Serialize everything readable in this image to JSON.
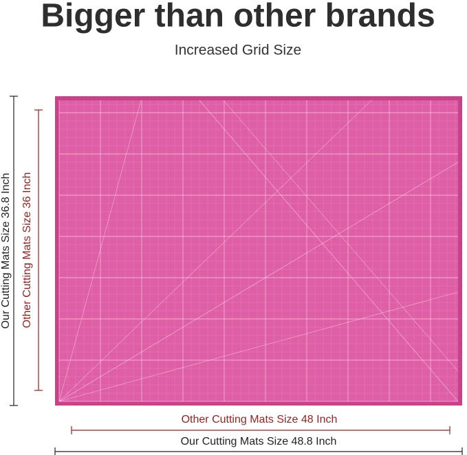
{
  "header": {
    "title": "Bigger than other brands",
    "subtitle": "Increased Grid Size"
  },
  "dimensions": {
    "our_height": "Our Cutting Mats Size 36.8 Inch",
    "other_height": "Other Cutting Mats Size 36 Inch",
    "other_width": "Other Cutting Mats Size 48 Inch",
    "our_width": "Our Cutting Mats Size 48.8 Inch"
  }
}
